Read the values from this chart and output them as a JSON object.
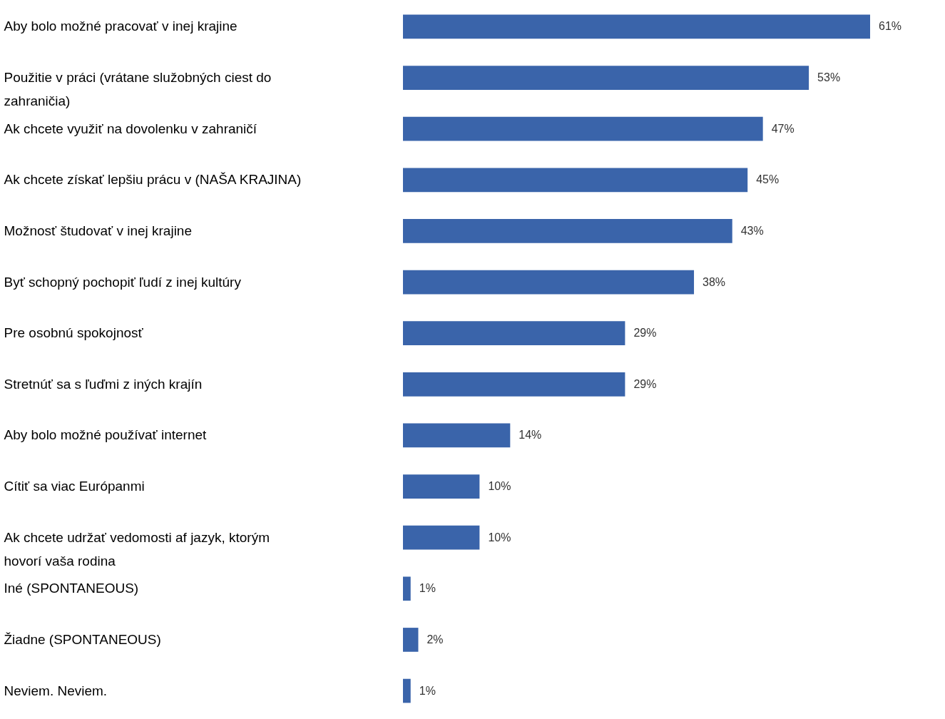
{
  "chart_data": {
    "type": "bar",
    "orientation": "horizontal",
    "categories": [
      "Aby bolo možné pracovať v inej krajine",
      "Použitie v práci (vrátane služobných ciest do zahraničia)",
      "Ak chcete využiť na dovolenku v zahraničí",
      "Ak chcete získať lepšiu prácu v (NAŠA KRAJINA)",
      "Možnosť študovať v inej krajine",
      "Byť schopný pochopiť ľudí z inej kultúry",
      "Pre osobnú spokojnosť",
      "Stretnúť sa s ľuďmi z iných krajín",
      "Aby bolo možné používať internet",
      "Cítiť sa viac Európanmi",
      "Ak chcete udržať vedomosti af jazyk, ktorým hovorí vaša rodina",
      "Iné (SPONTANEOUS)",
      "Žiadne (SPONTANEOUS)",
      "Neviem. Neviem."
    ],
    "values": [
      61,
      53,
      47,
      45,
      43,
      38,
      29,
      29,
      14,
      10,
      10,
      1,
      2,
      1
    ],
    "value_labels": [
      "61%",
      "53%",
      "47%",
      "45%",
      "43%",
      "38%",
      "29%",
      "29%",
      "14%",
      "10%",
      "10%",
      "1%",
      "2%",
      "1%"
    ],
    "color": "#3a64aa"
  }
}
